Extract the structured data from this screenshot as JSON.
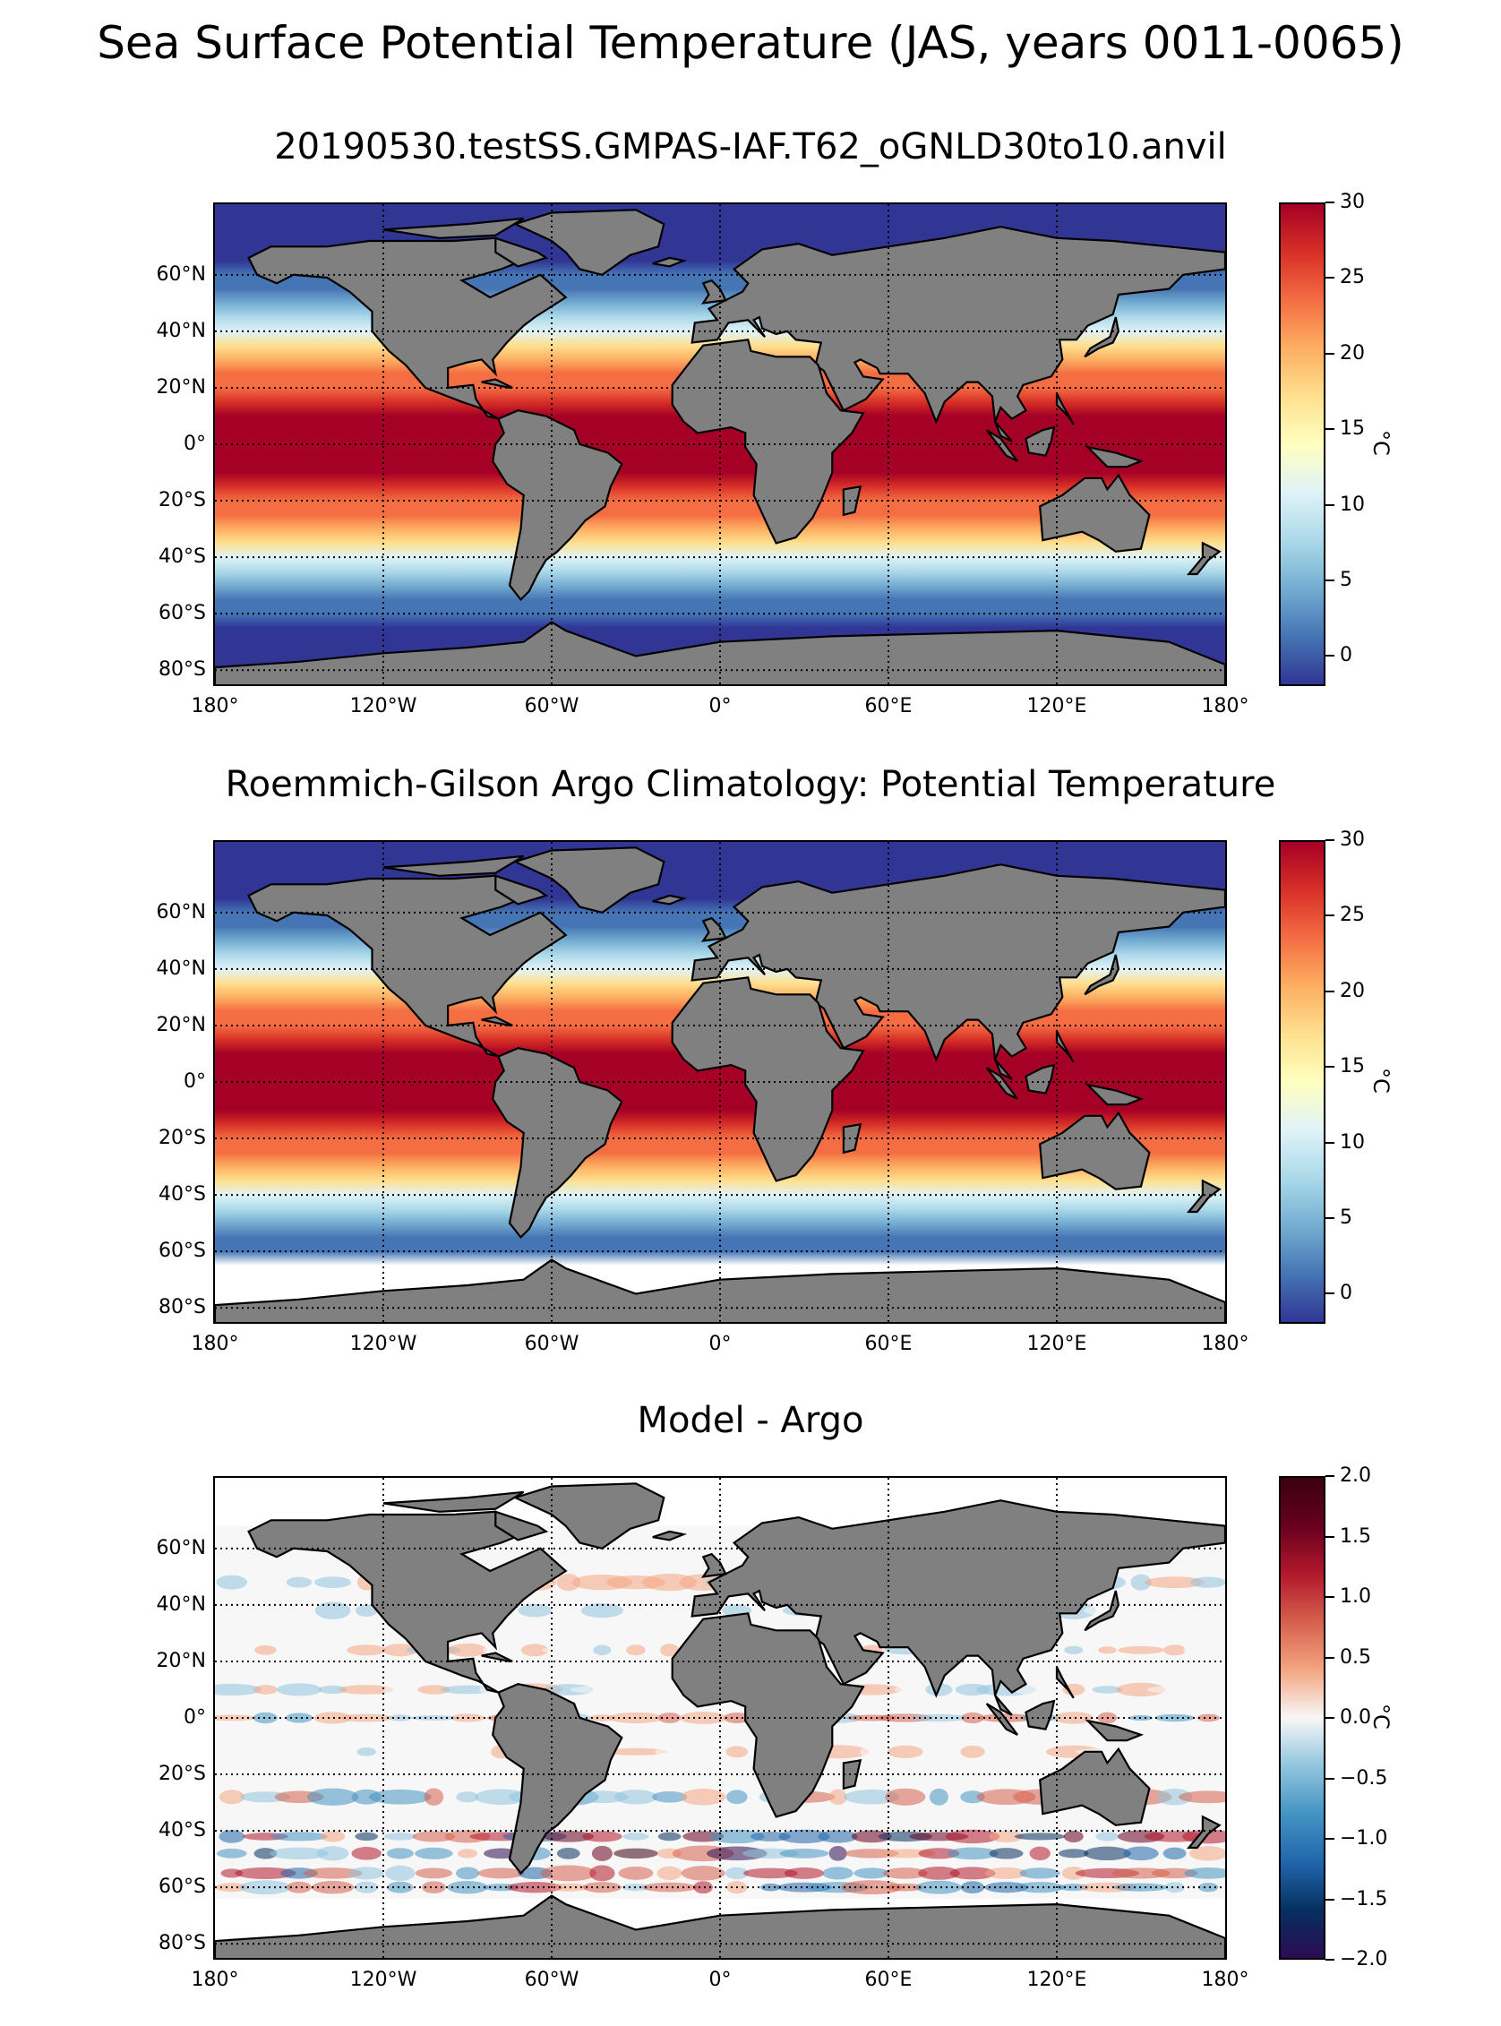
{
  "title": "Sea Surface Potential Temperature (JAS, years 0011-0065)",
  "lat_labels": [
    "60°N",
    "40°N",
    "20°N",
    "0°",
    "20°S",
    "40°S",
    "60°S",
    "80°S"
  ],
  "lon_labels": [
    "180°",
    "120°W",
    "60°W",
    "0°",
    "60°E",
    "120°E",
    "180°"
  ],
  "colors": {
    "land": "#808080",
    "coast": "#000000",
    "temp_colormap": [
      "#313695",
      "#4575b4",
      "#74add1",
      "#abd9e9",
      "#e0f3f8",
      "#ffffbf",
      "#fee090",
      "#fdae61",
      "#f46d43",
      "#d73027",
      "#a50026"
    ],
    "diff_colormap": [
      "#2d0b52",
      "#053061",
      "#2166ac",
      "#4393c3",
      "#92c5de",
      "#f7f7f7",
      "#f4a582",
      "#d6604d",
      "#b2182b",
      "#67001f",
      "#3b0010"
    ]
  },
  "panels": [
    {
      "title": "20190530.testSS.GMPAS-IAF.T62_oGNLD30to10.anvil",
      "field": "model",
      "colorbar": {
        "label": "°C",
        "ticks": [
          "30",
          "25",
          "20",
          "15",
          "10",
          "5",
          "0"
        ],
        "range": [
          -2,
          30
        ]
      }
    },
    {
      "title": "Roemmich-Gilson Argo Climatology: Potential Temperature",
      "field": "argo",
      "colorbar": {
        "label": "°C",
        "ticks": [
          "30",
          "25",
          "20",
          "15",
          "10",
          "5",
          "0"
        ],
        "range": [
          -2,
          30
        ]
      }
    },
    {
      "title": "Model - Argo",
      "field": "difference",
      "colorbar": {
        "label": "°C",
        "ticks": [
          "2.0",
          "1.5",
          "1.0",
          "0.5",
          "0.0",
          "−0.5",
          "−1.0",
          "−1.5",
          "−2.0"
        ],
        "range": [
          -2,
          2
        ]
      }
    }
  ]
}
